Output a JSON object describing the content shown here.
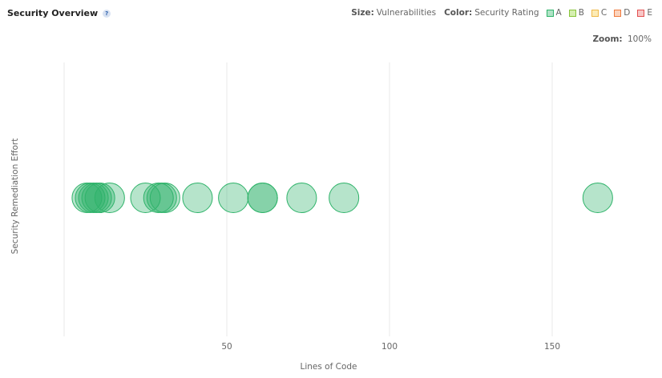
{
  "header": {
    "title": "Security Overview",
    "help_icon": "?",
    "size_label": "Size:",
    "size_value": "Vulnerabilities",
    "color_label": "Color:",
    "color_value": "Security Rating",
    "zoom_label": "Zoom:",
    "zoom_value": "100%"
  },
  "legend": [
    {
      "label": "A",
      "fill": "#b0e3c6",
      "stroke": "#2fb36a"
    },
    {
      "label": "B",
      "fill": "#d5efb0",
      "stroke": "#87c43a"
    },
    {
      "label": "C",
      "fill": "#fcebb5",
      "stroke": "#efb94a"
    },
    {
      "label": "D",
      "fill": "#fbd3bd",
      "stroke": "#ef7a3e"
    },
    {
      "label": "E",
      "fill": "#f8c6c6",
      "stroke": "#e35050"
    }
  ],
  "chart_data": {
    "type": "scatter",
    "xlabel": "Lines of Code",
    "ylabel": "Security Remediation Effort",
    "x_ticks": [
      50,
      100,
      150
    ],
    "xlim": [
      0,
      180
    ],
    "grid": true,
    "points": [
      {
        "x": 7,
        "y": 0,
        "rating": "A"
      },
      {
        "x": 8,
        "y": 0,
        "rating": "A"
      },
      {
        "x": 9,
        "y": 0,
        "rating": "A"
      },
      {
        "x": 10,
        "y": 0,
        "rating": "A"
      },
      {
        "x": 11,
        "y": 0,
        "rating": "A"
      },
      {
        "x": 14,
        "y": 0,
        "rating": "A"
      },
      {
        "x": 25,
        "y": 0,
        "rating": "A"
      },
      {
        "x": 29,
        "y": 0,
        "rating": "A"
      },
      {
        "x": 30,
        "y": 0,
        "rating": "A"
      },
      {
        "x": 31,
        "y": 0,
        "rating": "A"
      },
      {
        "x": 41,
        "y": 0,
        "rating": "A"
      },
      {
        "x": 52,
        "y": 0,
        "rating": "A"
      },
      {
        "x": 61,
        "y": 0,
        "rating": "A"
      },
      {
        "x": 61,
        "y": 0,
        "rating": "A"
      },
      {
        "x": 73,
        "y": 0,
        "rating": "A"
      },
      {
        "x": 86,
        "y": 0,
        "rating": "A"
      },
      {
        "x": 164,
        "y": 0,
        "rating": "A"
      }
    ]
  }
}
